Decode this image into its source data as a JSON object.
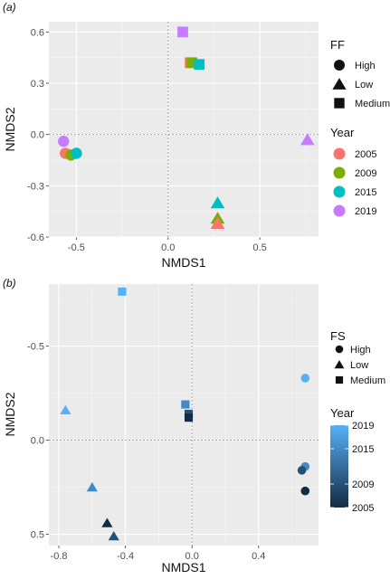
{
  "chart_data": [
    {
      "panel_label": "(a)",
      "type": "scatter",
      "xlabel": "NMDS1",
      "ylabel": "NMDS2",
      "xlim": [
        -0.65,
        0.82
      ],
      "ylim": [
        -0.6,
        0.66
      ],
      "xticks": [
        "-0.5",
        "0.0",
        "0.5"
      ],
      "yticks": [
        "-0.6",
        "-0.3",
        "0.0",
        "0.3",
        "0.6"
      ],
      "grid": true,
      "reference_lines": {
        "x": 0,
        "y": 0
      },
      "shape_legend": {
        "title": "FF",
        "items": [
          "High",
          "Low",
          "Medium"
        ]
      },
      "color_legend": {
        "title": "Year",
        "items": [
          {
            "label": "2005",
            "color": "#F8766D"
          },
          {
            "label": "2009",
            "color": "#7CAE00"
          },
          {
            "label": "2015",
            "color": "#00BFC4"
          },
          {
            "label": "2019",
            "color": "#C77CFF"
          }
        ]
      },
      "points": [
        {
          "x": 0.08,
          "y": 0.6,
          "shape": "Medium",
          "year": "2019"
        },
        {
          "x": 0.12,
          "y": 0.42,
          "shape": "Medium",
          "year": "2005"
        },
        {
          "x": 0.13,
          "y": 0.42,
          "shape": "Medium",
          "year": "2009"
        },
        {
          "x": 0.17,
          "y": 0.41,
          "shape": "Medium",
          "year": "2015"
        },
        {
          "x": 0.76,
          "y": -0.03,
          "shape": "Low",
          "year": "2019"
        },
        {
          "x": 0.27,
          "y": -0.4,
          "shape": "Low",
          "year": "2015"
        },
        {
          "x": 0.27,
          "y": -0.49,
          "shape": "Low",
          "year": "2009"
        },
        {
          "x": 0.27,
          "y": -0.52,
          "shape": "Low",
          "year": "2005"
        },
        {
          "x": -0.57,
          "y": -0.04,
          "shape": "High",
          "year": "2019"
        },
        {
          "x": -0.56,
          "y": -0.11,
          "shape": "High",
          "year": "2005"
        },
        {
          "x": -0.53,
          "y": -0.12,
          "shape": "High",
          "year": "2009"
        },
        {
          "x": -0.5,
          "y": -0.11,
          "shape": "High",
          "year": "2015"
        }
      ]
    },
    {
      "panel_label": "(b)",
      "type": "scatter",
      "xlabel": "NMDS1",
      "ylabel": "NMDS2",
      "xlim": [
        -0.86,
        0.76
      ],
      "ylim": [
        0.56,
        -0.83
      ],
      "y_reversed": true,
      "xticks": [
        "-0.8",
        "-0.4",
        "0.0",
        "0.4"
      ],
      "yticks": [
        "-0.5",
        "0.0",
        "0.5"
      ],
      "grid": true,
      "reference_lines": {
        "x": 0,
        "y": 0
      },
      "shape_legend": {
        "title": "FS",
        "items": [
          "High",
          "Low",
          "Medium"
        ]
      },
      "color_legend": {
        "title": "Year",
        "type": "gradient",
        "low_color": "#132B43",
        "high_color": "#56B1F7",
        "ticks": [
          "2019",
          "2015",
          "2009",
          "2005"
        ]
      },
      "points": [
        {
          "x": -0.42,
          "y": -0.79,
          "shape": "Medium",
          "year": 2019
        },
        {
          "x": 0.68,
          "y": -0.33,
          "shape": "High",
          "year": 2019
        },
        {
          "x": -0.76,
          "y": -0.16,
          "shape": "Low",
          "year": 2019
        },
        {
          "x": -0.04,
          "y": -0.19,
          "shape": "Medium",
          "year": 2015
        },
        {
          "x": -0.02,
          "y": -0.14,
          "shape": "Medium",
          "year": 2009
        },
        {
          "x": -0.02,
          "y": -0.12,
          "shape": "Medium",
          "year": 2005
        },
        {
          "x": 0.68,
          "y": 0.14,
          "shape": "High",
          "year": 2015
        },
        {
          "x": 0.66,
          "y": 0.16,
          "shape": "High",
          "year": 2009
        },
        {
          "x": 0.68,
          "y": 0.27,
          "shape": "High",
          "year": 2005
        },
        {
          "x": -0.6,
          "y": 0.25,
          "shape": "Low",
          "year": 2015
        },
        {
          "x": -0.51,
          "y": 0.44,
          "shape": "Low",
          "year": 2005
        },
        {
          "x": -0.47,
          "y": 0.51,
          "shape": "Low",
          "year": 2009
        }
      ]
    }
  ]
}
